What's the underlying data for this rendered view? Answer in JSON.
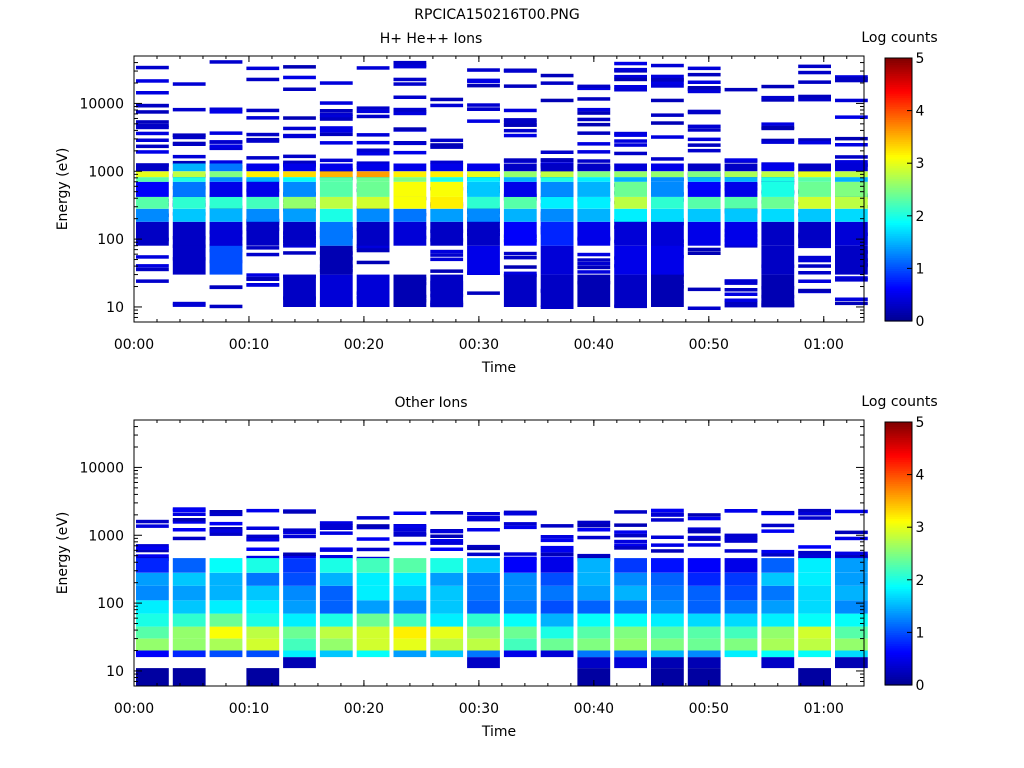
{
  "figure_title": "RPCICA150216T00.PNG",
  "colorbar": {
    "label": "Log counts",
    "ticks": [
      "0",
      "1",
      "2",
      "3",
      "4",
      "5"
    ],
    "range": [
      0,
      5
    ],
    "colormap": [
      "#00008f",
      "#0000ff",
      "#0080ff",
      "#00ffff",
      "#80ff80",
      "#ffff00",
      "#ff8000",
      "#ff0000",
      "#800000"
    ]
  },
  "chart_data": [
    {
      "type": "heatmap",
      "title": "H+ He++ Ions",
      "xlabel": "Time",
      "ylabel": "Energy (eV)",
      "x_tick_labels": [
        "00:00",
        "00:10",
        "00:20",
        "00:30",
        "00:40",
        "00:50",
        "01:00"
      ],
      "x_tick_values_min": [
        0,
        10,
        20,
        30,
        40,
        50,
        60
      ],
      "xlim_min": [
        0,
        63.5
      ],
      "y_scale": "log",
      "ylim": [
        6,
        50000
      ],
      "y_tick_labels": [
        "10",
        "100",
        "1000",
        "10000"
      ],
      "y_tick_values": [
        10,
        100,
        1000,
        10000
      ],
      "time_bins_min": [
        1.6,
        4.8,
        8.0,
        11.2,
        14.4,
        17.6,
        20.8,
        24.0,
        27.2,
        30.4,
        33.6,
        36.8,
        40.0,
        43.2,
        46.4,
        49.6,
        52.8,
        56.0,
        59.2,
        62.4
      ],
      "band_rows": [
        {
          "emin": 10,
          "emax": 30,
          "values": [
            0,
            0,
            0,
            0,
            0.3,
            0.4,
            0.4,
            0.2,
            0.3,
            0,
            0.3,
            0.3,
            0.2,
            0.3,
            0.2,
            0,
            0,
            0.2,
            0,
            0
          ]
        },
        {
          "emin": 30,
          "emax": 80,
          "values": [
            0,
            0.3,
            1.0,
            0,
            0,
            0.2,
            0,
            0,
            0,
            0.5,
            0,
            0.4,
            0,
            0.5,
            0.5,
            0,
            0,
            0.3,
            0,
            0.3
          ]
        },
        {
          "emin": 80,
          "emax": 180,
          "values": [
            0.3,
            0.3,
            0.4,
            0.3,
            0.3,
            1.2,
            0.3,
            0.4,
            0.3,
            0.3,
            0.6,
            0.8,
            0.5,
            0.4,
            0.4,
            0.5,
            0.5,
            0.3,
            0.3,
            0.4
          ]
        },
        {
          "emin": 180,
          "emax": 280,
          "values": [
            1.3,
            1.6,
            1.5,
            1.3,
            1.4,
            2.0,
            1.3,
            1.2,
            1.4,
            1.3,
            1.5,
            1.3,
            1.5,
            1.8,
            1.7,
            1.6,
            1.6,
            1.7,
            1.6,
            1.7
          ]
        },
        {
          "emin": 280,
          "emax": 420,
          "values": [
            2.3,
            2.1,
            2.1,
            2.2,
            2.6,
            2.8,
            2.9,
            3.1,
            3.2,
            2.1,
            2.3,
            1.8,
            1.8,
            2.8,
            2.1,
            2.3,
            2.3,
            2.4,
            2.9,
            2.8
          ]
        },
        {
          "emin": 420,
          "emax": 700,
          "values": [
            0.6,
            1.2,
            0.5,
            0.5,
            1.3,
            2.3,
            2.4,
            3.1,
            3.1,
            1.6,
            0.5,
            1.3,
            1.5,
            2.4,
            1.3,
            0.6,
            0.5,
            2.0,
            2.4,
            2.5
          ]
        },
        {
          "emin": 700,
          "emax": 820,
          "values": [
            2.3,
            2.0,
            1.3,
            1.5,
            1.9,
            2.3,
            2.4,
            2.5,
            2.0,
            1.8,
            1.5,
            2.0,
            1.8,
            1.5,
            1.3,
            1.5,
            1.5,
            2.0,
            2.3,
            1.5
          ]
        },
        {
          "emin": 820,
          "emax": 1000,
          "values": [
            3.0,
            2.8,
            2.5,
            3.2,
            3.3,
            3.5,
            3.6,
            3.2,
            3.2,
            3.0,
            2.6,
            2.8,
            2.5,
            2.6,
            2.6,
            2.5,
            2.7,
            2.8,
            3.0,
            2.8
          ]
        },
        {
          "emin": 1000,
          "emax": 1300,
          "values": [
            0.3,
            1.5,
            1.2,
            0.5,
            0.5,
            0.5,
            0.5,
            0.5,
            0.5,
            0.5,
            0.3,
            0.3,
            0.3,
            0.4,
            0.5,
            0.3,
            0.3,
            0.5,
            0.3,
            0.4
          ]
        }
      ],
      "sparse_level_min": 0.2,
      "sparse_level_max": 0.5,
      "sparse_energy_range": [
        10,
        45000
      ],
      "sparse_lines_per_bin": 22
    },
    {
      "type": "heatmap",
      "title": "Other Ions",
      "xlabel": "Time",
      "ylabel": "Energy (eV)",
      "x_tick_labels": [
        "00:00",
        "00:10",
        "00:20",
        "00:30",
        "00:40",
        "00:50",
        "01:00"
      ],
      "x_tick_values_min": [
        0,
        10,
        20,
        30,
        40,
        50,
        60
      ],
      "xlim_min": [
        0,
        63.5
      ],
      "y_scale": "log",
      "ylim": [
        6,
        50000
      ],
      "y_tick_labels": [
        "10",
        "100",
        "1000",
        "10000"
      ],
      "y_tick_values": [
        10,
        100,
        1000,
        10000
      ],
      "time_bins_min": [
        1.6,
        4.8,
        8.0,
        11.2,
        14.4,
        17.6,
        20.8,
        24.0,
        27.2,
        30.4,
        33.6,
        36.8,
        40.0,
        43.2,
        46.4,
        49.6,
        52.8,
        56.0,
        59.2,
        62.4
      ],
      "band_rows": [
        {
          "emin": 6,
          "emax": 11,
          "values": [
            0.1,
            0.1,
            0,
            0.1,
            0,
            0,
            0,
            0,
            0,
            0,
            0,
            0,
            0.1,
            0,
            0.1,
            0.1,
            0,
            0,
            0.1,
            0
          ]
        },
        {
          "emin": 11,
          "emax": 16,
          "values": [
            0,
            0,
            0,
            0,
            0.2,
            0,
            0,
            0,
            0,
            0.3,
            0,
            0,
            0.3,
            0.4,
            0.2,
            0.2,
            0,
            0.3,
            0,
            0.2
          ]
        },
        {
          "emin": 16,
          "emax": 20,
          "values": [
            0.6,
            0.8,
            1.0,
            1.0,
            1.8,
            1.6,
            1.9,
            1.4,
            1.6,
            1.2,
            0.5,
            0.4,
            1.2,
            1.2,
            1.5,
            1.3,
            1.8,
            1.9,
            1.9,
            1.7
          ]
        },
        {
          "emin": 20,
          "emax": 30,
          "values": [
            2.6,
            2.6,
            2.7,
            2.9,
            2.2,
            2.6,
            2.9,
            3.0,
            2.8,
            2.8,
            2.2,
            2.4,
            2.5,
            2.6,
            2.5,
            2.4,
            2.5,
            2.7,
            2.8,
            2.6
          ]
        },
        {
          "emin": 30,
          "emax": 45,
          "values": [
            2.3,
            2.6,
            3.1,
            2.8,
            2.4,
            2.8,
            2.9,
            3.2,
            3.0,
            2.6,
            2.4,
            2.0,
            2.3,
            2.5,
            2.3,
            2.3,
            2.2,
            2.6,
            2.9,
            2.3
          ]
        },
        {
          "emin": 45,
          "emax": 70,
          "values": [
            2.0,
            2.1,
            2.4,
            2.0,
            1.8,
            2.0,
            2.4,
            2.2,
            1.8,
            2.1,
            1.9,
            1.5,
            1.9,
            1.9,
            1.8,
            1.7,
            1.7,
            1.8,
            1.9,
            1.9
          ]
        },
        {
          "emin": 70,
          "emax": 110,
          "values": [
            1.8,
            1.6,
            1.8,
            1.8,
            1.4,
            1.1,
            1.4,
            1.3,
            1.6,
            1.1,
            1.2,
            1.0,
            1.1,
            1.2,
            1.3,
            1.1,
            1.2,
            1.4,
            1.7,
            1.3
          ]
        },
        {
          "emin": 110,
          "emax": 180,
          "values": [
            1.3,
            1.4,
            1.5,
            1.6,
            1.3,
            1.1,
            1.8,
            1.6,
            1.6,
            1.2,
            1.3,
            1.2,
            1.4,
            1.5,
            1.2,
            1.1,
            1.0,
            1.2,
            1.7,
            1.5
          ]
        },
        {
          "emin": 180,
          "emax": 280,
          "values": [
            1.4,
            1.6,
            1.5,
            1.2,
            1.0,
            1.5,
            1.8,
            1.8,
            1.4,
            1.2,
            1.3,
            1.0,
            1.5,
            1.3,
            1.1,
            0.8,
            0.9,
            1.6,
            1.8,
            1.4
          ]
        },
        {
          "emin": 280,
          "emax": 460,
          "values": [
            0.8,
            1.1,
            1.9,
            2.0,
            0.9,
            2.0,
            2.2,
            2.3,
            2.0,
            1.6,
            0.6,
            0.5,
            1.5,
            0.9,
            0.7,
            0.6,
            0.5,
            1.1,
            1.8,
            1.4
          ]
        }
      ],
      "sparse_level_min": 0.2,
      "sparse_level_max": 0.6,
      "sparse_energy_range": [
        460,
        2600
      ],
      "sparse_lines_per_bin": 7
    }
  ]
}
